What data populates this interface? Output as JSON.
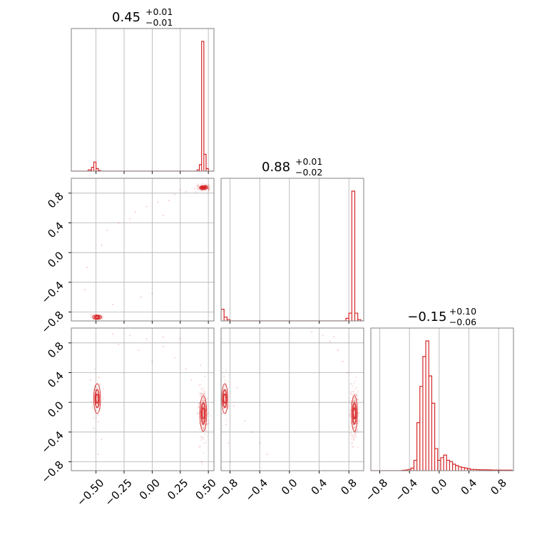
{
  "chart_data": {
    "type": "corner",
    "colors": {
      "series": "#d62728",
      "grid": "#b0b0b0",
      "spine": "#808080"
    },
    "grid": true,
    "parameters": [
      {
        "title": "0.45",
        "title_plus": "+0.01",
        "title_minus": "−0.01",
        "range": [
          -0.72,
          0.55
        ],
        "ticks": [
          -0.5,
          -0.25,
          0.0,
          0.25,
          0.5
        ],
        "tick_labels": [
          "−0.50",
          "−0.25",
          "0.00",
          "0.25",
          "0.50"
        ],
        "histogram": {
          "x": [
            -0.56,
            -0.53,
            -0.51,
            -0.49,
            -0.47,
            0.41,
            0.43,
            0.45,
            0.47,
            0.49
          ],
          "values": [
            0.01,
            0.03,
            0.07,
            0.02,
            0.005,
            0.01,
            0.05,
            1.0,
            0.13,
            0.02
          ]
        }
      },
      {
        "title": "0.88",
        "title_plus": "+0.01",
        "title_minus": "−0.02",
        "range": [
          -0.92,
          1.0
        ],
        "ticks": [
          -0.8,
          -0.4,
          0.0,
          0.4,
          0.8
        ],
        "tick_labels": [
          "−0.8",
          "−0.4",
          "0.0",
          "0.4",
          "0.8"
        ],
        "histogram": {
          "x": [
            -0.9,
            -0.86,
            -0.82,
            0.78,
            0.82,
            0.86,
            0.9,
            0.94
          ],
          "values": [
            0.09,
            0.03,
            0.01,
            0.02,
            0.06,
            1.0,
            0.06,
            0.01
          ]
        }
      },
      {
        "title": "−0.15",
        "title_plus": "+0.10",
        "title_minus": "−0.06",
        "range": [
          -0.92,
          1.0
        ],
        "ticks": [
          -0.8,
          -0.4,
          0.0,
          0.4,
          0.8
        ],
        "tick_labels": [
          "−0.8",
          "−0.4",
          "0.0",
          "0.4",
          "0.8"
        ],
        "histogram": {
          "x": [
            -0.48,
            -0.44,
            -0.4,
            -0.36,
            -0.32,
            -0.28,
            -0.24,
            -0.2,
            -0.16,
            -0.12,
            -0.08,
            -0.04,
            0.0,
            0.04,
            0.08,
            0.12,
            0.16,
            0.2,
            0.24,
            0.28,
            0.32,
            0.36,
            0.4,
            0.44,
            0.48,
            0.52,
            0.56,
            0.6,
            0.64,
            0.68,
            0.72,
            0.76,
            0.8,
            0.84,
            0.88,
            0.92,
            0.96
          ],
          "values": [
            0.003,
            0.005,
            0.01,
            0.02,
            0.08,
            0.37,
            0.65,
            0.88,
            1.0,
            0.73,
            0.52,
            0.17,
            0.08,
            0.1,
            0.12,
            0.08,
            0.07,
            0.05,
            0.04,
            0.03,
            0.025,
            0.02,
            0.015,
            0.01,
            0.01,
            0.008,
            0.007,
            0.007,
            0.006,
            0.006,
            0.005,
            0.005,
            0.005,
            0.004,
            0.004,
            0.004,
            0.004
          ]
        }
      }
    ],
    "pairs": [
      {
        "row": 1,
        "col": 0,
        "clusters": [
          {
            "x": 0.458,
            "y": 0.875,
            "sx": 0.018,
            "sy": 0.012,
            "weight": 0.85
          },
          {
            "x": -0.49,
            "y": -0.87,
            "sx": 0.02,
            "sy": 0.015,
            "weight": 0.15
          }
        ],
        "scatter": [
          [
            -0.3,
            0.4
          ],
          [
            -0.15,
            0.55
          ],
          [
            -0.05,
            0.62
          ],
          [
            0.05,
            0.68
          ],
          [
            0.1,
            0.5
          ],
          [
            0.2,
            0.78
          ],
          [
            0.3,
            0.82
          ],
          [
            -0.4,
            0.3
          ],
          [
            -0.45,
            0.1
          ],
          [
            -0.58,
            -0.2
          ],
          [
            -0.6,
            -0.5
          ],
          [
            -0.1,
            -0.6
          ],
          [
            0.0,
            -0.55
          ],
          [
            0.25,
            0.84
          ],
          [
            0.38,
            0.86
          ],
          [
            -0.35,
            -0.7
          ],
          [
            -0.53,
            -0.85
          ],
          [
            0.15,
            0.7
          ],
          [
            -0.2,
            0.45
          ],
          [
            0.4,
            0.9
          ]
        ]
      },
      {
        "row": 2,
        "col": 0,
        "clusters": [
          {
            "x": 0.455,
            "y": -0.15,
            "sx": 0.015,
            "sy": 0.12,
            "weight": 0.85
          },
          {
            "x": -0.49,
            "y": 0.05,
            "sx": 0.015,
            "sy": 0.1,
            "weight": 0.15
          }
        ],
        "scatter": [
          [
            -0.35,
            0.92
          ],
          [
            -0.2,
            0.9
          ],
          [
            -0.05,
            0.85
          ],
          [
            0.1,
            0.75
          ],
          [
            0.2,
            0.6
          ],
          [
            0.3,
            0.45
          ],
          [
            0.35,
            0.3
          ],
          [
            -0.3,
            0.78
          ],
          [
            0.0,
            0.55
          ],
          [
            -0.45,
            -0.5
          ],
          [
            -0.48,
            -0.7
          ],
          [
            0.44,
            -0.8
          ],
          [
            0.42,
            -0.6
          ],
          [
            0.43,
            0.5
          ],
          [
            0.47,
            0.35
          ],
          [
            -0.55,
            0.3
          ],
          [
            -0.52,
            -0.35
          ],
          [
            0.1,
            0.88
          ],
          [
            -0.12,
            0.7
          ],
          [
            0.25,
            0.86
          ]
        ]
      },
      {
        "row": 2,
        "col": 1,
        "clusters": [
          {
            "x": 0.875,
            "y": -0.15,
            "sx": 0.02,
            "sy": 0.12,
            "weight": 0.85
          },
          {
            "x": -0.87,
            "y": 0.05,
            "sx": 0.02,
            "sy": 0.1,
            "weight": 0.15
          }
        ],
        "scatter": [
          [
            0.3,
            0.95
          ],
          [
            0.45,
            0.9
          ],
          [
            0.55,
            0.82
          ],
          [
            0.65,
            0.7
          ],
          [
            0.72,
            0.55
          ],
          [
            0.78,
            0.4
          ],
          [
            -0.85,
            -0.3
          ],
          [
            -0.82,
            -0.55
          ],
          [
            -0.8,
            -0.8
          ],
          [
            -0.88,
            0.35
          ],
          [
            -0.75,
            -0.05
          ],
          [
            -0.7,
            0.2
          ],
          [
            -0.6,
            -0.25
          ],
          [
            -0.5,
            -0.4
          ],
          [
            -0.4,
            -0.55
          ],
          [
            -0.3,
            -0.7
          ],
          [
            0.83,
            0.25
          ],
          [
            0.86,
            -0.6
          ],
          [
            0.84,
            -0.45
          ],
          [
            0.6,
            0.88
          ]
        ]
      }
    ]
  }
}
